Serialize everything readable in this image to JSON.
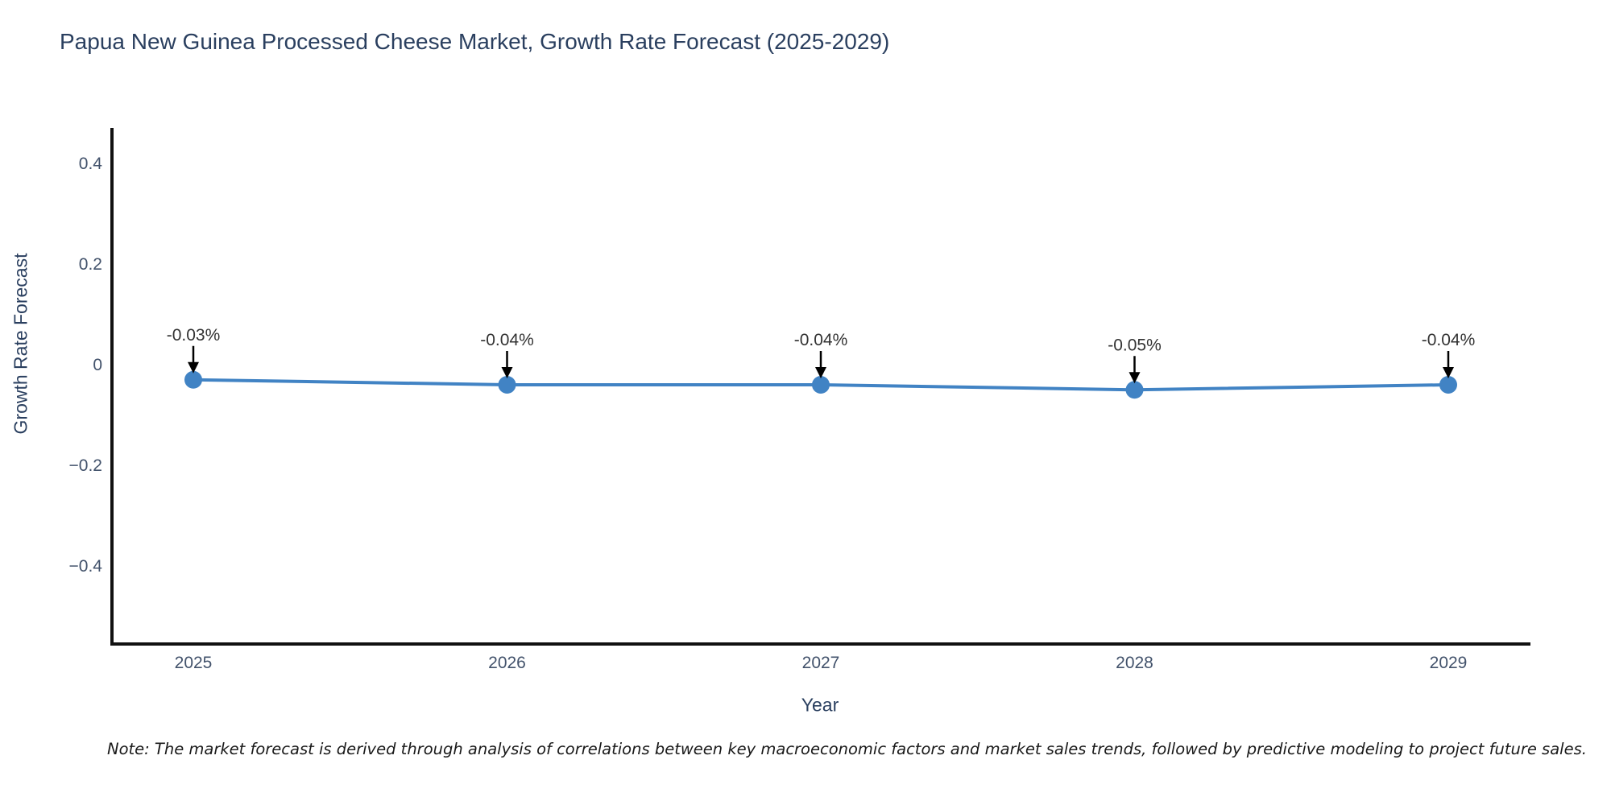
{
  "chart_data": {
    "type": "line",
    "title": "Papua New Guinea Processed Cheese Market, Growth Rate Forecast (2025-2029)",
    "xlabel": "Year",
    "ylabel": "Growth Rate Forecast",
    "categories": [
      "2025",
      "2026",
      "2027",
      "2028",
      "2029"
    ],
    "series": [
      {
        "name": "Growth Rate Forecast",
        "values": [
          -0.03,
          -0.04,
          -0.04,
          -0.05,
          -0.04
        ]
      }
    ],
    "point_labels": [
      "-0.03%",
      "-0.04%",
      "-0.04%",
      "-0.05%",
      "-0.04%"
    ],
    "yticks": [
      0.4,
      0.2,
      0,
      -0.2,
      -0.4
    ],
    "ytick_labels": [
      "0.4",
      "0.2",
      "0",
      "−0.2",
      "−0.4"
    ],
    "ylim": [
      -0.55,
      0.47
    ],
    "grid": false,
    "legend_position": "none",
    "line_color": "#4183c4",
    "marker_color": "#4183c4",
    "arrow_color": "#000000",
    "axis_color": "#111111",
    "title_color": "#2a3f5f"
  },
  "note": {
    "text": "Note: The market forecast is derived through analysis of correlations between key macroeconomic factors and market sales trends, followed by predictive modeling to project future sales."
  }
}
